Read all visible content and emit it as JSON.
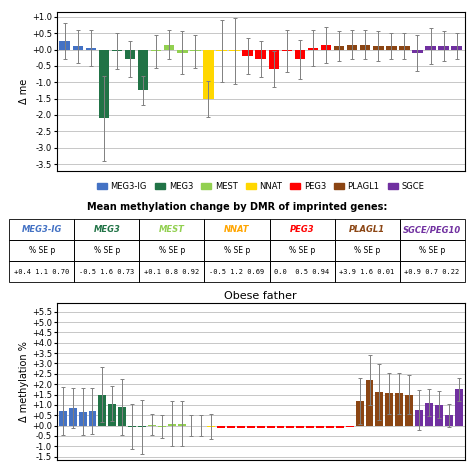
{
  "chart_data": [
    {
      "type": "bar",
      "ylabel": "Δ me",
      "categories": [
        null,
        null,
        null,
        null,
        null,
        null,
        null,
        null,
        null,
        null,
        null,
        null,
        null,
        null,
        null,
        null,
        null,
        null,
        null,
        null,
        null,
        null,
        null,
        null,
        null,
        null,
        null,
        null,
        null,
        null,
        null
      ],
      "series": [
        {
          "name": "MEG3-IG",
          "color": "#4472C4",
          "values": [
            0.25,
            0.1,
            0.05,
            null,
            null,
            null,
            null,
            null,
            null,
            null,
            null,
            null,
            null,
            null,
            null,
            null,
            null,
            null,
            null,
            null,
            null,
            null,
            null,
            null,
            null,
            null,
            null,
            null,
            null,
            null,
            null
          ],
          "errors": [
            0.55,
            0.5,
            0.55,
            null,
            null,
            null,
            null,
            null,
            null,
            null,
            null,
            null,
            null,
            null,
            null,
            null,
            null,
            null,
            null,
            null,
            null,
            null,
            null,
            null,
            null,
            null,
            null,
            null,
            null,
            null,
            null
          ]
        },
        {
          "name": "MEG3",
          "color": "#217346",
          "values": [
            null,
            null,
            null,
            -2.1,
            -0.05,
            -0.3,
            -1.25,
            null,
            null,
            null,
            null,
            null,
            null,
            null,
            null,
            null,
            null,
            null,
            null,
            null,
            null,
            null,
            null,
            null,
            null,
            null,
            null,
            null,
            null,
            null,
            null
          ],
          "errors": [
            null,
            null,
            null,
            1.3,
            0.55,
            0.55,
            0.45,
            null,
            null,
            null,
            null,
            null,
            null,
            null,
            null,
            null,
            null,
            null,
            null,
            null,
            null,
            null,
            null,
            null,
            null,
            null,
            null,
            null,
            null,
            null,
            null
          ]
        },
        {
          "name": "MEST",
          "color": "#92D050",
          "values": [
            null,
            null,
            null,
            null,
            null,
            null,
            null,
            -0.05,
            0.15,
            -0.1,
            -0.05,
            null,
            null,
            null,
            null,
            null,
            null,
            null,
            null,
            null,
            null,
            null,
            null,
            null,
            null,
            null,
            null,
            null,
            null,
            null,
            null
          ],
          "errors": [
            null,
            null,
            null,
            null,
            null,
            null,
            null,
            0.5,
            0.45,
            0.65,
            0.5,
            null,
            null,
            null,
            null,
            null,
            null,
            null,
            null,
            null,
            null,
            null,
            null,
            null,
            null,
            null,
            null,
            null,
            null,
            null,
            null
          ]
        },
        {
          "name": "NNAT",
          "color": "#FFD700",
          "values": [
            null,
            null,
            null,
            null,
            null,
            null,
            null,
            null,
            null,
            null,
            null,
            -1.5,
            -0.05,
            -0.05,
            null,
            null,
            null,
            null,
            null,
            null,
            null,
            null,
            null,
            null,
            null,
            null,
            null,
            null,
            null,
            null,
            null
          ],
          "errors": [
            null,
            null,
            null,
            null,
            null,
            null,
            null,
            null,
            null,
            null,
            null,
            0.55,
            0.95,
            1.0,
            null,
            null,
            null,
            null,
            null,
            null,
            null,
            null,
            null,
            null,
            null,
            null,
            null,
            null,
            null,
            null,
            null
          ]
        },
        {
          "name": "PEG3",
          "color": "#FF0000",
          "values": [
            null,
            null,
            null,
            null,
            null,
            null,
            null,
            null,
            null,
            null,
            null,
            null,
            null,
            null,
            -0.2,
            -0.3,
            -0.6,
            -0.05,
            -0.3,
            0.05,
            0.15,
            null,
            null,
            null,
            null,
            null,
            null,
            null,
            null,
            null,
            null
          ],
          "errors": [
            null,
            null,
            null,
            null,
            null,
            null,
            null,
            null,
            null,
            null,
            null,
            null,
            null,
            null,
            0.55,
            0.55,
            0.55,
            0.65,
            0.6,
            0.55,
            0.55,
            null,
            null,
            null,
            null,
            null,
            null,
            null,
            null,
            null,
            null
          ]
        },
        {
          "name": "PLAGL1",
          "color": "#8B4513",
          "values": [
            null,
            null,
            null,
            null,
            null,
            null,
            null,
            null,
            null,
            null,
            null,
            null,
            null,
            null,
            null,
            null,
            null,
            null,
            null,
            null,
            null,
            0.1,
            0.15,
            0.15,
            0.1,
            0.1,
            0.1,
            null,
            null,
            null,
            null
          ],
          "errors": [
            null,
            null,
            null,
            null,
            null,
            null,
            null,
            null,
            null,
            null,
            null,
            null,
            null,
            null,
            null,
            null,
            null,
            null,
            null,
            null,
            null,
            0.45,
            0.45,
            0.45,
            0.45,
            0.4,
            0.4,
            null,
            null,
            null,
            null
          ]
        },
        {
          "name": "SGCE",
          "color": "#7030A0",
          "values": [
            null,
            null,
            null,
            null,
            null,
            null,
            null,
            null,
            null,
            null,
            null,
            null,
            null,
            null,
            null,
            null,
            null,
            null,
            null,
            null,
            null,
            null,
            null,
            null,
            null,
            null,
            null,
            -0.1,
            0.1,
            0.1,
            0.1
          ],
          "errors": [
            null,
            null,
            null,
            null,
            null,
            null,
            null,
            null,
            null,
            null,
            null,
            null,
            null,
            null,
            null,
            null,
            null,
            null,
            null,
            null,
            null,
            null,
            null,
            null,
            null,
            null,
            null,
            0.55,
            0.55,
            0.45,
            0.4
          ]
        }
      ],
      "ylim": [
        -3.7,
        1.15
      ],
      "yticks": [
        {
          "value": 1.0,
          "label": "+1.0"
        },
        {
          "value": 0.5,
          "label": "+0.5"
        },
        {
          "value": 0.0,
          "label": "+0.0"
        },
        -0.5,
        -1.0,
        -1.5,
        -2.0,
        -2.5,
        -3.0,
        -3.5
      ],
      "grid": true
    },
    {
      "type": "table",
      "title": "Mean methylation change by DMR of imprinted genes:",
      "categories": [
        "MEG3-IG",
        "MEG3",
        "MEST",
        "NNAT",
        "PEG3",
        "PLAGL1",
        "SGCE/PEG10"
      ],
      "colors": [
        "#4472C4",
        "#217346",
        "#92D050",
        "#FFA500",
        "#FF0000",
        "#8B4513",
        "#7030A0"
      ],
      "rows": [
        [
          "% SE p",
          "% SE p",
          "% SE p",
          "% SE p",
          "% SE p",
          "% SE p",
          "% SE p"
        ],
        [
          "+0.4 1.1 0.70",
          "-0.5 1.6 0.73",
          "+0.1 0.8 0.92",
          "-0.5 1.2 0.69",
          "0.0  0.5 0.94",
          "+3.9 1.6 0.01",
          "+0.9 0.7 0.22"
        ]
      ]
    },
    {
      "type": "bar",
      "title": "Obese father",
      "ylabel": "Δ methylation %",
      "categories": [
        null,
        null,
        null,
        null,
        null,
        null,
        null,
        null,
        null,
        null,
        null,
        null,
        null,
        null,
        null,
        null,
        null,
        null,
        null,
        null,
        null,
        null,
        null,
        null,
        null,
        null,
        null,
        null,
        null,
        null,
        null,
        null,
        null,
        null,
        null,
        null,
        null,
        null,
        null,
        null,
        null
      ],
      "values": [
        0.7,
        0.85,
        0.68,
        0.7,
        1.5,
        1.05,
        0.9,
        -0.05,
        -0.05,
        0.05,
        -0.05,
        0.1,
        0.1,
        0.0,
        0.0,
        -0.05,
        -0.1,
        -0.1,
        -0.1,
        -0.1,
        -0.1,
        -0.1,
        -0.1,
        -0.1,
        -0.1,
        -0.1,
        -0.1,
        -0.1,
        -0.1,
        -0.05,
        1.2,
        2.2,
        1.6,
        1.55,
        1.55,
        1.5,
        0.75,
        1.1,
        1.0,
        0.5,
        1.75
      ],
      "errors": [
        1.15,
        0.95,
        1.15,
        1.1,
        1.35,
        0.85,
        1.35,
        1.1,
        1.3,
        0.5,
        0.55,
        1.1,
        1.1,
        0.5,
        0.5,
        0.6,
        0.0,
        0.0,
        0.0,
        0.0,
        0.0,
        0.0,
        0.0,
        0.0,
        0.0,
        0.0,
        0.0,
        0.0,
        0.0,
        0.0,
        1.1,
        1.2,
        1.35,
        1.0,
        1.0,
        0.95,
        0.95,
        0.65,
        0.65,
        0.55,
        0.55
      ],
      "colors": [
        "#4472C4",
        "#4472C4",
        "#4472C4",
        "#4472C4",
        "#217346",
        "#217346",
        "#217346",
        "#217346",
        "#217346",
        "#92D050",
        "#92D050",
        "#92D050",
        "#92D050",
        "#FFD700",
        "#FFD700",
        "#FFD700",
        "#FF0000",
        "#FF0000",
        "#FF0000",
        "#FF0000",
        "#FF0000",
        "#FF0000",
        "#FF0000",
        "#FF0000",
        "#FF0000",
        "#FF0000",
        "#FF0000",
        "#FF0000",
        "#FF0000",
        "#FF0000",
        "#8B4513",
        "#8B4513",
        "#8B4513",
        "#8B4513",
        "#8B4513",
        "#8B4513",
        "#7030A0",
        "#7030A0",
        "#7030A0",
        "#7030A0",
        "#7030A0"
      ],
      "ylim": [
        -1.65,
        5.9
      ],
      "yticks": [
        {
          "value": 5.5,
          "label": "+5.5"
        },
        {
          "value": 5.0,
          "label": "+5.0"
        },
        {
          "value": 4.5,
          "label": "+4.5"
        },
        {
          "value": 4.0,
          "label": "+4.0"
        },
        {
          "value": 3.5,
          "label": "+3.5"
        },
        {
          "value": 3.0,
          "label": "+3.0"
        },
        {
          "value": 2.5,
          "label": "+2.5"
        },
        {
          "value": 2.0,
          "label": "+2.0"
        },
        {
          "value": 1.5,
          "label": "+1.5"
        },
        {
          "value": 1.0,
          "label": "+1.0"
        },
        {
          "value": 0.5,
          "label": "+0.5"
        },
        {
          "value": 0.0,
          "label": "+0.0"
        },
        -0.5,
        -1.0,
        -1.5
      ],
      "grid": true
    }
  ]
}
